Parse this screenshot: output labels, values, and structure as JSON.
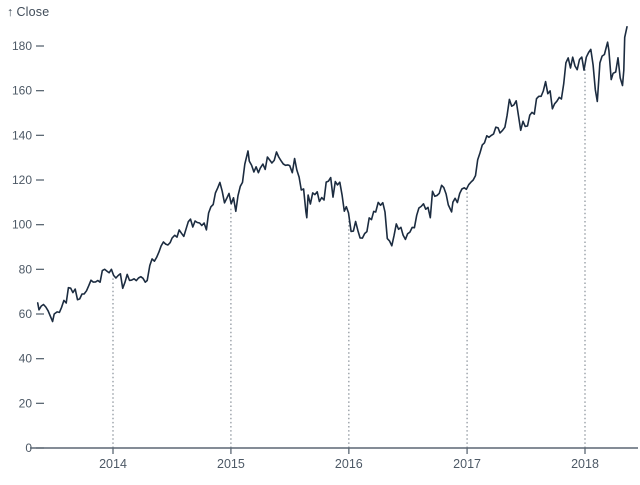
{
  "chart": {
    "title_arrow": "↑",
    "title_label": "Close"
  },
  "colors": {
    "background": "#ffffff",
    "line": "#1c2c40",
    "axis": "#5b6773",
    "tick_text": "#4d5966",
    "title_text": "#404c59",
    "grid_dots": "#878f98"
  },
  "chart_data": {
    "type": "line",
    "title": "↑ Close",
    "xlabel": "",
    "ylabel": "Close",
    "x_domain": [
      "2013-05-13",
      "2018-05-11"
    ],
    "ylim": [
      0,
      190
    ],
    "y_ticks": [
      0,
      20,
      40,
      60,
      80,
      100,
      120,
      140,
      160,
      180
    ],
    "x_ticks": [
      2014,
      2015,
      2016,
      2017,
      2018
    ],
    "x_tick_labels": [
      "2014",
      "2015",
      "2016",
      "2017",
      "2018"
    ],
    "rule_dates": [
      "2014-01-01",
      "2015-01-01",
      "2016-01-01",
      "2017-01-01",
      "2018-01-01"
    ],
    "grid": "dotted vertical rules at year starts, clipped to the line",
    "legend": "none",
    "series": [
      {
        "name": "Close",
        "points": [
          [
            "2013-05-13",
            64.96
          ],
          [
            "2013-05-17",
            61.89
          ],
          [
            "2013-05-24",
            63.59
          ],
          [
            "2013-05-31",
            64.25
          ],
          [
            "2013-06-07",
            63.12
          ],
          [
            "2013-06-14",
            61.43
          ],
          [
            "2013-06-21",
            59.07
          ],
          [
            "2013-06-28",
            56.65
          ],
          [
            "2013-07-03",
            59.98
          ],
          [
            "2013-07-12",
            60.93
          ],
          [
            "2013-07-19",
            60.71
          ],
          [
            "2013-07-26",
            62.99
          ],
          [
            "2013-08-02",
            66.08
          ],
          [
            "2013-08-09",
            64.92
          ],
          [
            "2013-08-16",
            71.76
          ],
          [
            "2013-08-23",
            71.57
          ],
          [
            "2013-08-30",
            69.6
          ],
          [
            "2013-09-06",
            71.17
          ],
          [
            "2013-09-13",
            66.41
          ],
          [
            "2013-09-20",
            66.77
          ],
          [
            "2013-09-27",
            68.96
          ],
          [
            "2013-10-04",
            69.0
          ],
          [
            "2013-10-11",
            70.4
          ],
          [
            "2013-10-18",
            72.7
          ],
          [
            "2013-10-25",
            75.14
          ],
          [
            "2013-11-01",
            74.29
          ],
          [
            "2013-11-08",
            74.37
          ],
          [
            "2013-11-15",
            74.99
          ],
          [
            "2013-11-22",
            74.26
          ],
          [
            "2013-11-29",
            79.44
          ],
          [
            "2013-12-06",
            80.0
          ],
          [
            "2013-12-13",
            79.2
          ],
          [
            "2013-12-20",
            78.43
          ],
          [
            "2013-12-27",
            80.01
          ],
          [
            "2014-01-03",
            77.28
          ],
          [
            "2014-01-10",
            76.13
          ],
          [
            "2014-01-17",
            77.24
          ],
          [
            "2014-01-24",
            78.01
          ],
          [
            "2014-01-31",
            71.51
          ],
          [
            "2014-02-07",
            74.24
          ],
          [
            "2014-02-14",
            77.71
          ],
          [
            "2014-02-21",
            75.04
          ],
          [
            "2014-02-28",
            75.18
          ],
          [
            "2014-03-07",
            75.78
          ],
          [
            "2014-03-14",
            74.96
          ],
          [
            "2014-03-21",
            76.12
          ],
          [
            "2014-03-28",
            76.69
          ],
          [
            "2014-04-04",
            75.97
          ],
          [
            "2014-04-11",
            74.23
          ],
          [
            "2014-04-17",
            74.99
          ],
          [
            "2014-04-25",
            81.71
          ],
          [
            "2014-05-02",
            84.65
          ],
          [
            "2014-05-09",
            83.65
          ],
          [
            "2014-05-16",
            85.36
          ],
          [
            "2014-05-23",
            87.73
          ],
          [
            "2014-05-30",
            90.43
          ],
          [
            "2014-06-06",
            92.22
          ],
          [
            "2014-06-13",
            91.28
          ],
          [
            "2014-06-20",
            90.91
          ],
          [
            "2014-06-27",
            91.98
          ],
          [
            "2014-07-03",
            94.03
          ],
          [
            "2014-07-11",
            95.22
          ],
          [
            "2014-07-18",
            94.43
          ],
          [
            "2014-07-25",
            97.67
          ],
          [
            "2014-08-01",
            96.13
          ],
          [
            "2014-08-08",
            94.74
          ],
          [
            "2014-08-15",
            97.98
          ],
          [
            "2014-08-22",
            101.32
          ],
          [
            "2014-08-29",
            102.5
          ],
          [
            "2014-09-05",
            98.97
          ],
          [
            "2014-09-12",
            101.66
          ],
          [
            "2014-09-19",
            100.96
          ],
          [
            "2014-09-26",
            100.75
          ],
          [
            "2014-10-03",
            99.62
          ],
          [
            "2014-10-10",
            100.73
          ],
          [
            "2014-10-17",
            97.67
          ],
          [
            "2014-10-24",
            105.22
          ],
          [
            "2014-10-31",
            108.0
          ],
          [
            "2014-11-07",
            109.01
          ],
          [
            "2014-11-14",
            114.18
          ],
          [
            "2014-11-21",
            116.47
          ],
          [
            "2014-11-28",
            118.93
          ],
          [
            "2014-12-05",
            115.0
          ],
          [
            "2014-12-12",
            109.73
          ],
          [
            "2014-12-19",
            111.78
          ],
          [
            "2014-12-26",
            113.99
          ],
          [
            "2015-01-02",
            109.33
          ],
          [
            "2015-01-09",
            112.01
          ],
          [
            "2015-01-16",
            105.99
          ],
          [
            "2015-01-23",
            112.98
          ],
          [
            "2015-01-30",
            117.16
          ],
          [
            "2015-02-06",
            118.93
          ],
          [
            "2015-02-13",
            127.08
          ],
          [
            "2015-02-23",
            133.0
          ],
          [
            "2015-02-27",
            128.46
          ],
          [
            "2015-03-06",
            126.6
          ],
          [
            "2015-03-13",
            123.59
          ],
          [
            "2015-03-20",
            125.9
          ],
          [
            "2015-03-27",
            123.25
          ],
          [
            "2015-04-02",
            125.32
          ],
          [
            "2015-04-10",
            127.1
          ],
          [
            "2015-04-17",
            124.75
          ],
          [
            "2015-04-24",
            130.28
          ],
          [
            "2015-05-01",
            128.95
          ],
          [
            "2015-05-08",
            127.62
          ],
          [
            "2015-05-15",
            128.77
          ],
          [
            "2015-05-22",
            132.54
          ],
          [
            "2015-05-29",
            130.28
          ],
          [
            "2015-06-05",
            128.65
          ],
          [
            "2015-06-12",
            127.17
          ],
          [
            "2015-06-19",
            126.6
          ],
          [
            "2015-06-26",
            126.75
          ],
          [
            "2015-07-02",
            126.44
          ],
          [
            "2015-07-10",
            123.28
          ],
          [
            "2015-07-17",
            129.62
          ],
          [
            "2015-07-24",
            124.5
          ],
          [
            "2015-07-31",
            121.3
          ],
          [
            "2015-08-07",
            115.52
          ],
          [
            "2015-08-14",
            115.96
          ],
          [
            "2015-08-21",
            105.76
          ],
          [
            "2015-08-24",
            103.12
          ],
          [
            "2015-08-28",
            113.29
          ],
          [
            "2015-09-04",
            109.27
          ],
          [
            "2015-09-11",
            114.21
          ],
          [
            "2015-09-18",
            113.45
          ],
          [
            "2015-09-25",
            114.71
          ],
          [
            "2015-10-02",
            110.38
          ],
          [
            "2015-10-09",
            112.12
          ],
          [
            "2015-10-16",
            111.04
          ],
          [
            "2015-10-23",
            119.08
          ],
          [
            "2015-10-30",
            119.5
          ],
          [
            "2015-11-06",
            121.06
          ],
          [
            "2015-11-13",
            112.34
          ],
          [
            "2015-11-20",
            119.3
          ],
          [
            "2015-11-27",
            117.81
          ],
          [
            "2015-12-04",
            119.03
          ],
          [
            "2015-12-11",
            113.18
          ],
          [
            "2015-12-18",
            106.03
          ],
          [
            "2015-12-24",
            108.03
          ],
          [
            "2015-12-31",
            105.26
          ],
          [
            "2016-01-08",
            96.96
          ],
          [
            "2016-01-15",
            97.13
          ],
          [
            "2016-01-22",
            101.42
          ],
          [
            "2016-01-29",
            97.34
          ],
          [
            "2016-02-05",
            94.02
          ],
          [
            "2016-02-12",
            93.99
          ],
          [
            "2016-02-19",
            96.04
          ],
          [
            "2016-02-26",
            96.91
          ],
          [
            "2016-03-04",
            103.01
          ],
          [
            "2016-03-11",
            102.26
          ],
          [
            "2016-03-18",
            105.92
          ],
          [
            "2016-03-24",
            105.67
          ],
          [
            "2016-04-01",
            109.99
          ],
          [
            "2016-04-08",
            108.66
          ],
          [
            "2016-04-15",
            109.85
          ],
          [
            "2016-04-22",
            105.68
          ],
          [
            "2016-04-29",
            93.74
          ],
          [
            "2016-05-06",
            92.72
          ],
          [
            "2016-05-13",
            90.52
          ],
          [
            "2016-05-20",
            95.22
          ],
          [
            "2016-05-27",
            100.35
          ],
          [
            "2016-06-03",
            97.92
          ],
          [
            "2016-06-10",
            98.83
          ],
          [
            "2016-06-17",
            95.33
          ],
          [
            "2016-06-24",
            93.4
          ],
          [
            "2016-07-01",
            95.89
          ],
          [
            "2016-07-08",
            96.68
          ],
          [
            "2016-07-15",
            98.78
          ],
          [
            "2016-07-22",
            98.66
          ],
          [
            "2016-07-29",
            104.21
          ],
          [
            "2016-08-05",
            107.48
          ],
          [
            "2016-08-12",
            108.18
          ],
          [
            "2016-08-19",
            109.36
          ],
          [
            "2016-08-26",
            106.94
          ],
          [
            "2016-09-02",
            107.73
          ],
          [
            "2016-09-09",
            103.13
          ],
          [
            "2016-09-16",
            114.92
          ],
          [
            "2016-09-23",
            112.71
          ],
          [
            "2016-09-30",
            113.05
          ],
          [
            "2016-10-07",
            114.06
          ],
          [
            "2016-10-14",
            117.63
          ],
          [
            "2016-10-21",
            116.6
          ],
          [
            "2016-10-28",
            113.72
          ],
          [
            "2016-11-04",
            108.84
          ],
          [
            "2016-11-14",
            105.71
          ],
          [
            "2016-11-18",
            110.06
          ],
          [
            "2016-11-25",
            111.79
          ],
          [
            "2016-12-02",
            109.9
          ],
          [
            "2016-12-09",
            113.95
          ],
          [
            "2016-12-16",
            115.97
          ],
          [
            "2016-12-23",
            116.52
          ],
          [
            "2016-12-30",
            115.82
          ],
          [
            "2017-01-06",
            117.91
          ],
          [
            "2017-01-13",
            119.04
          ],
          [
            "2017-01-20",
            120.0
          ],
          [
            "2017-01-27",
            121.95
          ],
          [
            "2017-02-03",
            129.08
          ],
          [
            "2017-02-10",
            132.12
          ],
          [
            "2017-02-17",
            135.72
          ],
          [
            "2017-02-24",
            136.66
          ],
          [
            "2017-03-03",
            139.78
          ],
          [
            "2017-03-10",
            139.14
          ],
          [
            "2017-03-17",
            139.99
          ],
          [
            "2017-03-24",
            140.64
          ],
          [
            "2017-03-31",
            143.66
          ],
          [
            "2017-04-07",
            143.34
          ],
          [
            "2017-04-13",
            141.05
          ],
          [
            "2017-04-21",
            142.27
          ],
          [
            "2017-04-28",
            143.65
          ],
          [
            "2017-05-05",
            148.96
          ],
          [
            "2017-05-12",
            156.1
          ],
          [
            "2017-05-19",
            153.06
          ],
          [
            "2017-05-26",
            153.61
          ],
          [
            "2017-06-02",
            155.45
          ],
          [
            "2017-06-09",
            148.98
          ],
          [
            "2017-06-16",
            142.27
          ],
          [
            "2017-06-23",
            146.28
          ],
          [
            "2017-06-30",
            144.02
          ],
          [
            "2017-07-07",
            144.18
          ],
          [
            "2017-07-14",
            149.04
          ],
          [
            "2017-07-21",
            150.27
          ],
          [
            "2017-07-28",
            149.5
          ],
          [
            "2017-08-04",
            156.39
          ],
          [
            "2017-08-11",
            157.48
          ],
          [
            "2017-08-18",
            157.5
          ],
          [
            "2017-08-25",
            159.86
          ],
          [
            "2017-09-01",
            164.05
          ],
          [
            "2017-09-08",
            158.63
          ],
          [
            "2017-09-15",
            159.88
          ],
          [
            "2017-09-22",
            151.89
          ],
          [
            "2017-09-29",
            154.12
          ],
          [
            "2017-10-06",
            155.3
          ],
          [
            "2017-10-13",
            156.99
          ],
          [
            "2017-10-20",
            156.25
          ],
          [
            "2017-10-27",
            163.05
          ],
          [
            "2017-11-03",
            172.5
          ],
          [
            "2017-11-10",
            174.67
          ],
          [
            "2017-11-17",
            170.15
          ],
          [
            "2017-11-24",
            174.97
          ],
          [
            "2017-12-01",
            171.05
          ],
          [
            "2017-12-08",
            169.37
          ],
          [
            "2017-12-15",
            173.97
          ],
          [
            "2017-12-22",
            175.01
          ],
          [
            "2017-12-29",
            169.23
          ],
          [
            "2018-01-05",
            175.0
          ],
          [
            "2018-01-12",
            177.09
          ],
          [
            "2018-01-19",
            178.46
          ],
          [
            "2018-01-26",
            171.51
          ],
          [
            "2018-02-02",
            160.5
          ],
          [
            "2018-02-08",
            155.15
          ],
          [
            "2018-02-16",
            172.43
          ],
          [
            "2018-02-23",
            175.5
          ],
          [
            "2018-03-02",
            176.21
          ],
          [
            "2018-03-09",
            179.98
          ],
          [
            "2018-03-12",
            181.72
          ],
          [
            "2018-03-16",
            178.02
          ],
          [
            "2018-03-23",
            164.94
          ],
          [
            "2018-03-29",
            167.78
          ],
          [
            "2018-04-06",
            168.38
          ],
          [
            "2018-04-13",
            174.73
          ],
          [
            "2018-04-20",
            165.72
          ],
          [
            "2018-04-27",
            162.32
          ],
          [
            "2018-05-01",
            169.1
          ],
          [
            "2018-05-04",
            183.83
          ],
          [
            "2018-05-11",
            188.59
          ]
        ]
      }
    ]
  }
}
